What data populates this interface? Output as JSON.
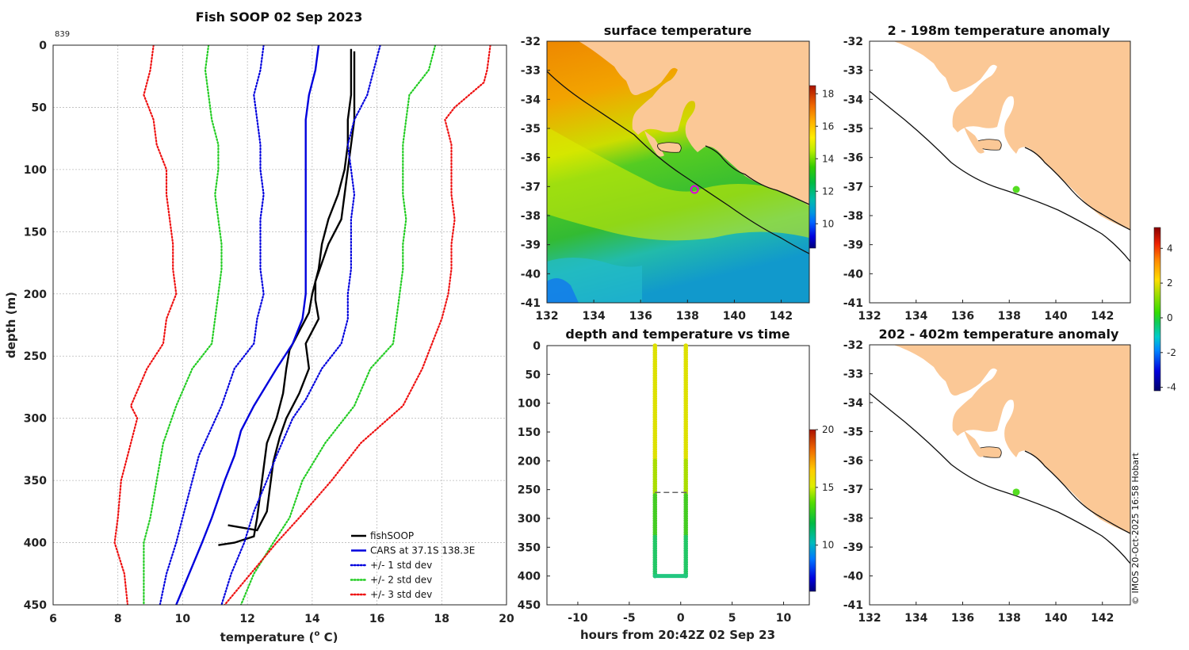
{
  "figure": {
    "id_label": "839",
    "credit": "© IMOS 20-Oct-2025 16:58 Hobart"
  },
  "profile": {
    "title": "Fish SOOP 02 Sep 2023",
    "xlabel": "temperature (",
    "xlabel_sup": "o",
    "xlabel_unit": " C)",
    "ylabel": "depth (m)",
    "legend": [
      {
        "label": "fishSOOP",
        "color": "#000000",
        "style": "solid"
      },
      {
        "label": "CARS at 37.1S 138.3E",
        "color": "#0000dd",
        "style": "solid"
      },
      {
        "label": "+/- 1 std dev",
        "color": "#0000dd",
        "style": "dotted"
      },
      {
        "label": "+/- 2 std dev",
        "color": "#22cc22",
        "style": "dotted"
      },
      {
        "label": "+/- 3 std dev",
        "color": "#ee1111",
        "style": "dotted"
      }
    ]
  },
  "surface_map": {
    "title": "surface temperature"
  },
  "anomaly_shallow": {
    "title": "2 - 198m temperature anomaly"
  },
  "anomaly_deep": {
    "title": "202 - 402m temperature anomaly"
  },
  "timeline": {
    "title": "depth and temperature vs time",
    "xlabel": "hours from 20:42Z 02 Sep 23"
  },
  "colors": {
    "land": "#fbc896",
    "fish": "#000000",
    "cars": "#0000dd",
    "sd1": "#0000dd",
    "sd2": "#22cc22",
    "sd3": "#ee1111",
    "station": "#dd00dd",
    "station_anom": "#55dd22"
  },
  "chart_data": [
    {
      "type": "line",
      "name": "temperature-profile",
      "title": "Fish SOOP 02 Sep 2023",
      "xlabel": "temperature (o C)",
      "ylabel": "depth (m)",
      "xlim": [
        6,
        20
      ],
      "ylim": [
        450,
        0
      ],
      "xticks": [
        6,
        8,
        10,
        12,
        14,
        16,
        18,
        20
      ],
      "yticks": [
        0,
        50,
        100,
        150,
        200,
        250,
        300,
        350,
        400,
        450
      ],
      "grid": true,
      "legend_position": "bottom-right",
      "series": [
        {
          "name": "fishSOOP (down)",
          "color": "#000000",
          "style": "solid",
          "points": [
            [
              15.2,
              3
            ],
            [
              15.2,
              20
            ],
            [
              15.2,
              40
            ],
            [
              15.1,
              60
            ],
            [
              15.1,
              80
            ],
            [
              15.0,
              100
            ],
            [
              14.8,
              120
            ],
            [
              14.5,
              140
            ],
            [
              14.3,
              160
            ],
            [
              14.2,
              180
            ],
            [
              14.0,
              200
            ],
            [
              13.9,
              215
            ],
            [
              13.6,
              230
            ],
            [
              13.3,
              245
            ],
            [
              13.2,
              260
            ],
            [
              13.1,
              280
            ],
            [
              12.9,
              300
            ],
            [
              12.6,
              320
            ],
            [
              12.5,
              340
            ],
            [
              12.4,
              360
            ],
            [
              12.3,
              380
            ],
            [
              12.2,
              395
            ],
            [
              11.6,
              400
            ],
            [
              11.1,
              402
            ]
          ]
        },
        {
          "name": "fishSOOP (up)",
          "color": "#000000",
          "style": "solid",
          "points": [
            [
              11.4,
              386
            ],
            [
              12.3,
              390
            ],
            [
              12.6,
              375
            ],
            [
              12.7,
              355
            ],
            [
              12.8,
              335
            ],
            [
              13.0,
              315
            ],
            [
              13.2,
              300
            ],
            [
              13.6,
              280
            ],
            [
              13.9,
              260
            ],
            [
              13.8,
              240
            ],
            [
              14.2,
              220
            ],
            [
              14.1,
              205
            ],
            [
              14.1,
              190
            ],
            [
              14.3,
              175
            ],
            [
              14.5,
              160
            ],
            [
              14.9,
              140
            ],
            [
              15.0,
              120
            ],
            [
              15.1,
              100
            ],
            [
              15.2,
              80
            ],
            [
              15.3,
              60
            ],
            [
              15.3,
              40
            ],
            [
              15.3,
              20
            ],
            [
              15.3,
              5
            ]
          ]
        },
        {
          "name": "CARS at 37.1S 138.3E",
          "color": "#0000dd",
          "style": "solid",
          "points": [
            [
              14.2,
              0
            ],
            [
              14.1,
              20
            ],
            [
              13.9,
              40
            ],
            [
              13.8,
              60
            ],
            [
              13.8,
              80
            ],
            [
              13.8,
              100
            ],
            [
              13.8,
              120
            ],
            [
              13.8,
              140
            ],
            [
              13.8,
              160
            ],
            [
              13.8,
              180
            ],
            [
              13.8,
              200
            ],
            [
              13.7,
              220
            ],
            [
              13.4,
              240
            ],
            [
              12.9,
              260
            ],
            [
              12.2,
              290
            ],
            [
              11.8,
              310
            ],
            [
              11.6,
              330
            ],
            [
              11.3,
              350
            ],
            [
              10.9,
              380
            ],
            [
              10.6,
              400
            ],
            [
              10.2,
              425
            ],
            [
              9.8,
              450
            ]
          ]
        },
        {
          "name": "+/- 1 std dev (upper)",
          "color": "#0000dd",
          "style": "dotted",
          "points": [
            [
              16.1,
              0
            ],
            [
              15.9,
              20
            ],
            [
              15.7,
              40
            ],
            [
              15.3,
              60
            ],
            [
              15.1,
              80
            ],
            [
              15.2,
              100
            ],
            [
              15.3,
              120
            ],
            [
              15.2,
              140
            ],
            [
              15.2,
              160
            ],
            [
              15.2,
              180
            ],
            [
              15.1,
              200
            ],
            [
              15.1,
              220
            ],
            [
              14.9,
              240
            ],
            [
              14.3,
              260
            ],
            [
              13.8,
              285
            ],
            [
              13.4,
              300
            ],
            [
              12.9,
              330
            ],
            [
              12.6,
              350
            ],
            [
              12.2,
              375
            ],
            [
              11.9,
              400
            ],
            [
              11.5,
              425
            ],
            [
              11.2,
              450
            ]
          ]
        },
        {
          "name": "+/- 1 std dev (lower)",
          "color": "#0000dd",
          "style": "dotted",
          "points": [
            [
              12.5,
              0
            ],
            [
              12.4,
              20
            ],
            [
              12.2,
              40
            ],
            [
              12.3,
              60
            ],
            [
              12.4,
              80
            ],
            [
              12.4,
              100
            ],
            [
              12.5,
              120
            ],
            [
              12.4,
              140
            ],
            [
              12.4,
              160
            ],
            [
              12.4,
              180
            ],
            [
              12.5,
              200
            ],
            [
              12.3,
              220
            ],
            [
              12.2,
              240
            ],
            [
              11.6,
              260
            ],
            [
              11.2,
              290
            ],
            [
              10.5,
              330
            ],
            [
              10.3,
              350
            ],
            [
              10.0,
              380
            ],
            [
              9.8,
              400
            ],
            [
              9.5,
              425
            ],
            [
              9.3,
              450
            ]
          ]
        },
        {
          "name": "+/- 2 std dev (upper)",
          "color": "#22cc22",
          "style": "dotted",
          "points": [
            [
              17.8,
              0
            ],
            [
              17.6,
              20
            ],
            [
              17.0,
              40
            ],
            [
              16.9,
              60
            ],
            [
              16.8,
              80
            ],
            [
              16.8,
              100
            ],
            [
              16.8,
              120
            ],
            [
              16.9,
              140
            ],
            [
              16.8,
              160
            ],
            [
              16.8,
              180
            ],
            [
              16.7,
              200
            ],
            [
              16.6,
              220
            ],
            [
              16.5,
              240
            ],
            [
              15.8,
              260
            ],
            [
              15.3,
              290
            ],
            [
              14.4,
              320
            ],
            [
              13.7,
              350
            ],
            [
              13.3,
              380
            ],
            [
              12.8,
              400
            ],
            [
              12.2,
              425
            ],
            [
              11.8,
              450
            ]
          ]
        },
        {
          "name": "+/- 2 std dev (lower)",
          "color": "#22cc22",
          "style": "dotted",
          "points": [
            [
              10.8,
              0
            ],
            [
              10.7,
              20
            ],
            [
              10.8,
              40
            ],
            [
              10.9,
              60
            ],
            [
              11.1,
              80
            ],
            [
              11.1,
              100
            ],
            [
              11.0,
              120
            ],
            [
              11.1,
              140
            ],
            [
              11.2,
              160
            ],
            [
              11.2,
              180
            ],
            [
              11.1,
              200
            ],
            [
              11.0,
              220
            ],
            [
              10.9,
              240
            ],
            [
              10.3,
              260
            ],
            [
              9.8,
              290
            ],
            [
              9.4,
              320
            ],
            [
              9.2,
              350
            ],
            [
              9.0,
              380
            ],
            [
              8.8,
              400
            ],
            [
              8.8,
              425
            ],
            [
              8.8,
              450
            ]
          ]
        },
        {
          "name": "+/- 3 std dev (upper)",
          "color": "#ee1111",
          "style": "dotted",
          "points": [
            [
              19.5,
              0
            ],
            [
              19.4,
              20
            ],
            [
              19.3,
              30
            ],
            [
              18.4,
              50
            ],
            [
              18.1,
              60
            ],
            [
              18.3,
              80
            ],
            [
              18.3,
              100
            ],
            [
              18.3,
              120
            ],
            [
              18.4,
              140
            ],
            [
              18.3,
              160
            ],
            [
              18.3,
              180
            ],
            [
              18.2,
              200
            ],
            [
              18.0,
              220
            ],
            [
              17.7,
              240
            ],
            [
              17.4,
              260
            ],
            [
              16.8,
              290
            ],
            [
              15.5,
              320
            ],
            [
              14.6,
              350
            ],
            [
              13.6,
              380
            ],
            [
              12.9,
              400
            ],
            [
              12.1,
              425
            ],
            [
              11.3,
              450
            ]
          ]
        },
        {
          "name": "+/- 3 std dev (lower)",
          "color": "#ee1111",
          "style": "dotted",
          "points": [
            [
              9.1,
              0
            ],
            [
              9.0,
              20
            ],
            [
              8.8,
              40
            ],
            [
              9.1,
              60
            ],
            [
              9.2,
              80
            ],
            [
              9.5,
              100
            ],
            [
              9.5,
              120
            ],
            [
              9.6,
              140
            ],
            [
              9.7,
              160
            ],
            [
              9.7,
              180
            ],
            [
              9.8,
              200
            ],
            [
              9.5,
              220
            ],
            [
              9.4,
              240
            ],
            [
              8.9,
              260
            ],
            [
              8.4,
              290
            ],
            [
              8.6,
              300
            ],
            [
              8.3,
              330
            ],
            [
              8.1,
              350
            ],
            [
              8.0,
              380
            ],
            [
              7.9,
              400
            ],
            [
              8.2,
              425
            ],
            [
              8.3,
              450
            ]
          ]
        }
      ]
    },
    {
      "type": "heatmap",
      "name": "surface-temperature-map",
      "title": "surface temperature",
      "xlim": [
        132,
        143.2
      ],
      "ylim": [
        -41,
        -32
      ],
      "xticks": [
        132,
        134,
        136,
        138,
        140,
        142
      ],
      "yticks": [
        -32,
        -33,
        -34,
        -35,
        -36,
        -37,
        -38,
        -39,
        -40,
        -41
      ],
      "colorbar": {
        "min": 8.5,
        "max": 18.5,
        "ticks": [
          10,
          12,
          14,
          16,
          18
        ]
      },
      "station": {
        "lon": 138.3,
        "lat": -37.1
      }
    },
    {
      "type": "heatmap",
      "name": "anomaly-2-198m",
      "title": "2 - 198m temperature anomaly",
      "xlim": [
        132,
        143.2
      ],
      "ylim": [
        -41,
        -32
      ],
      "xticks": [
        132,
        134,
        136,
        138,
        140,
        142
      ],
      "yticks": [
        -32,
        -33,
        -34,
        -35,
        -36,
        -37,
        -38,
        -39,
        -40,
        -41
      ],
      "colorbar": {
        "min": -4.2,
        "max": 5.2,
        "ticks": [
          -4,
          -2,
          0,
          2,
          4
        ]
      },
      "station": {
        "lon": 138.3,
        "lat": -37.1
      }
    },
    {
      "type": "heatmap",
      "name": "anomaly-202-402m",
      "title": "202 - 402m temperature anomaly",
      "xlim": [
        132,
        143.2
      ],
      "ylim": [
        -41,
        -32
      ],
      "xticks": [
        132,
        134,
        136,
        138,
        140,
        142
      ],
      "yticks": [
        -32,
        -33,
        -34,
        -35,
        -36,
        -37,
        -38,
        -39,
        -40,
        -41
      ],
      "station": {
        "lon": 138.3,
        "lat": -37.1
      }
    },
    {
      "type": "scatter",
      "name": "depth-temperature-vs-time",
      "title": "depth and temperature vs time",
      "xlabel": "hours from 20:42Z 02 Sep 23",
      "xlim": [
        -13,
        12.5
      ],
      "ylim": [
        450,
        0
      ],
      "xticks": [
        -10,
        -5,
        0,
        5,
        10
      ],
      "yticks": [
        0,
        50,
        100,
        150,
        200,
        250,
        300,
        350,
        400,
        450
      ],
      "colorbar": {
        "min": 6,
        "max": 20,
        "ticks": [
          10,
          15,
          20
        ]
      },
      "casts": [
        {
          "x_start": -2.5,
          "x_end": 0.5,
          "max_depth": 400
        }
      ],
      "mld_line": {
        "depth": 255,
        "x_from": -2.5,
        "x_to": 0.6
      }
    }
  ]
}
